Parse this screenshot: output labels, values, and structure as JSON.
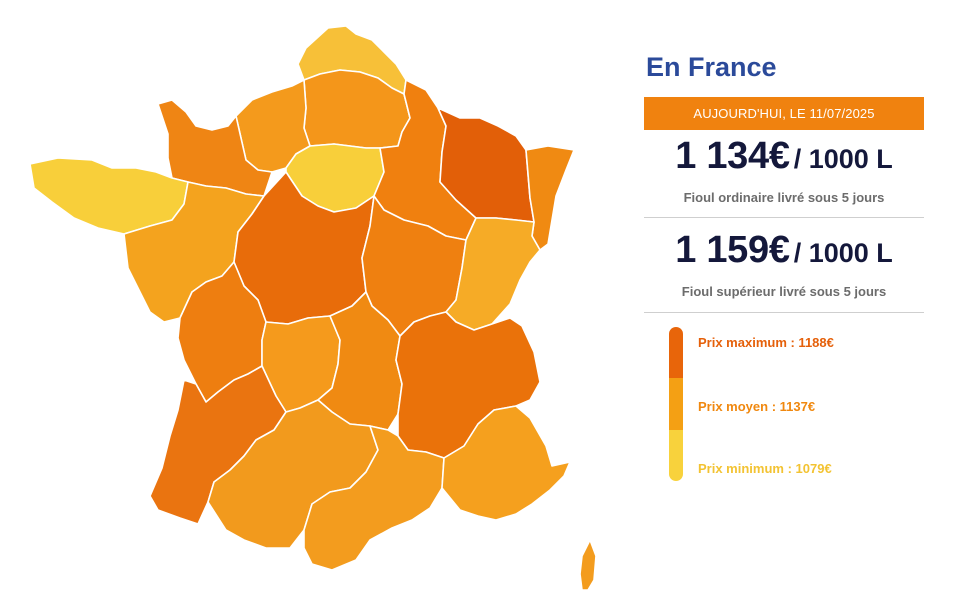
{
  "title": "En France",
  "date_banner": "AUJOURD'HUI, LE 11/07/2025",
  "prices": [
    {
      "amount": "1 134€",
      "unit": "/ 1000 L",
      "caption": "Fioul ordinaire livré sous 5 jours"
    },
    {
      "amount": "1 159€",
      "unit": "/ 1000 L",
      "caption": "Fioul supérieur livré sous 5 jours"
    }
  ],
  "legend": {
    "max": "Prix maximum : 1188€",
    "avg": "Prix moyen : 1137€",
    "min": "Prix minimum : 1079€"
  },
  "colors": {
    "title": "#2b4a9a",
    "banner": "#f0820f",
    "price_text": "#14183b",
    "caption_text": "#6c6c6c",
    "legend_max": "#e8650a",
    "legend_avg": "#f4a014",
    "legend_min": "#f8d23c",
    "map_darkest": "#e25f08",
    "map_dark": "#ea720a",
    "map_mid": "#f0870f",
    "map_light": "#f4a31e",
    "map_lightest": "#f8cf3a"
  },
  "map_regions": [
    {
      "name": "Nord-Pas-de-Calais",
      "color": "#f7c038"
    },
    {
      "name": "Picardie",
      "color": "#f4961a"
    },
    {
      "name": "Haute-Normandie",
      "color": "#f49a1c"
    },
    {
      "name": "Basse-Normandie",
      "color": "#ef8514"
    },
    {
      "name": "Île-de-France",
      "color": "#f8cf3a"
    },
    {
      "name": "Bretagne",
      "color": "#f8cf3a"
    },
    {
      "name": "Pays de la Loire",
      "color": "#f4a31e"
    },
    {
      "name": "Centre",
      "color": "#e86c0a"
    },
    {
      "name": "Champagne-Ardenne",
      "color": "#f0800f"
    },
    {
      "name": "Lorraine",
      "color": "#e25f08"
    },
    {
      "name": "Alsace",
      "color": "#f08a12"
    },
    {
      "name": "Bourgogne",
      "color": "#ef8010"
    },
    {
      "name": "Franche-Comté",
      "color": "#f6ab26"
    },
    {
      "name": "Poitou-Charentes",
      "color": "#ee7e10"
    },
    {
      "name": "Limousin",
      "color": "#f59a1c"
    },
    {
      "name": "Auvergne",
      "color": "#f08a12"
    },
    {
      "name": "Rhône-Alpes",
      "color": "#ea720a"
    },
    {
      "name": "Aquitaine",
      "color": "#ea7410"
    },
    {
      "name": "Midi-Pyrénées",
      "color": "#f29a1d"
    },
    {
      "name": "Languedoc-Roussillon",
      "color": "#f39c1e"
    },
    {
      "name": "Provence-Alpes-Côte d'Azur",
      "color": "#f5a01e"
    },
    {
      "name": "Corse",
      "color": "#f39c1e"
    }
  ]
}
